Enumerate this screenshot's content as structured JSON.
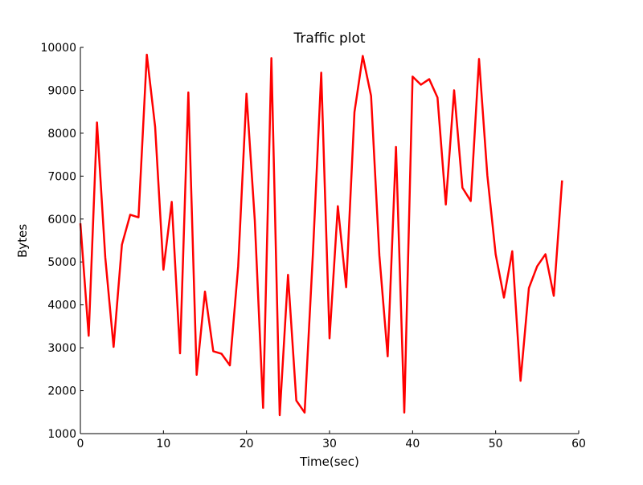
{
  "chart_data": {
    "type": "line",
    "title": "Traffic plot",
    "xlabel": "Time(sec)",
    "ylabel": "Bytes",
    "xlim": [
      0,
      60
    ],
    "ylim": [
      1000,
      10000
    ],
    "xticks": [
      0,
      10,
      20,
      30,
      40,
      50,
      60
    ],
    "yticks": [
      1000,
      2000,
      3000,
      4000,
      5000,
      6000,
      7000,
      8000,
      9000,
      10000
    ],
    "grid": false,
    "legend": "none",
    "series": [
      {
        "color": "#ff0000",
        "x": [
          0,
          1,
          2,
          3,
          4,
          5,
          6,
          7,
          8,
          9,
          10,
          11,
          12,
          13,
          14,
          15,
          16,
          17,
          18,
          19,
          20,
          21,
          22,
          23,
          24,
          25,
          26,
          27,
          28,
          29,
          30,
          31,
          32,
          33,
          34,
          35,
          36,
          37,
          38,
          39,
          40,
          41,
          42,
          43,
          44,
          45,
          46,
          47,
          48,
          49,
          50,
          51,
          52,
          53,
          54,
          55,
          56,
          57,
          58
        ],
        "y": [
          5900,
          3280,
          8250,
          5100,
          3020,
          5400,
          6100,
          6040,
          9830,
          8150,
          4820,
          6400,
          2870,
          8950,
          2370,
          4310,
          2920,
          2860,
          2590,
          4900,
          8920,
          5970,
          1600,
          9750,
          1430,
          4700,
          1770,
          1490,
          5200,
          9410,
          3220,
          6300,
          4410,
          8490,
          9800,
          8870,
          5150,
          2800,
          7680,
          1490,
          9320,
          9130,
          9260,
          8830,
          6340,
          9000,
          6730,
          6420,
          9730,
          7020,
          5180,
          4170,
          5250,
          2230,
          4390,
          4900,
          5180,
          4210,
          6900
        ]
      }
    ]
  }
}
